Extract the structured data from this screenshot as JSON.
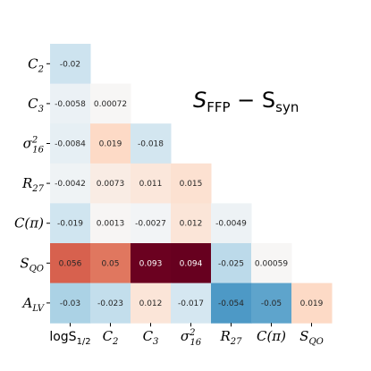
{
  "chart_data": {
    "type": "heatmap",
    "title_main": "S",
    "title_sub_a": "FFP",
    "title_mid": " − S",
    "title_sub_b": "syn",
    "row_labels": [
      {
        "main": "C",
        "sub": "2",
        "sup": ""
      },
      {
        "main": "C",
        "sub": "3",
        "sup": ""
      },
      {
        "main": "σ",
        "sub": "16",
        "sup": "2"
      },
      {
        "main": "R",
        "sub": "27",
        "sup": ""
      },
      {
        "main": "C(π)",
        "sub": "",
        "sup": ""
      },
      {
        "main": "S",
        "sub": "QO",
        "sup": ""
      },
      {
        "main": "A",
        "sub": "LV",
        "sup": ""
      }
    ],
    "col_labels": [
      {
        "main": "logS",
        "sub": "1/2",
        "sup": ""
      },
      {
        "main": "C",
        "sub": "2",
        "sup": ""
      },
      {
        "main": "C",
        "sub": "3",
        "sup": ""
      },
      {
        "main": "σ",
        "sub": "16",
        "sup": "2"
      },
      {
        "main": "R",
        "sub": "27",
        "sup": ""
      },
      {
        "main": "C(π)",
        "sub": "",
        "sup": ""
      },
      {
        "main": "S",
        "sub": "QO",
        "sup": ""
      }
    ],
    "values": [
      [
        -0.02
      ],
      [
        -0.0058,
        0.00072
      ],
      [
        -0.0084,
        0.019,
        -0.018
      ],
      [
        -0.0042,
        0.0073,
        0.011,
        0.015
      ],
      [
        -0.019,
        0.0013,
        -0.0027,
        0.012,
        -0.0049
      ],
      [
        0.056,
        0.05,
        0.093,
        0.094,
        -0.025,
        0.00059
      ],
      [
        -0.03,
        -0.023,
        0.012,
        -0.017,
        -0.054,
        -0.05,
        0.019
      ]
    ],
    "value_labels": [
      [
        "-0.02"
      ],
      [
        "-0.0058",
        "0.00072"
      ],
      [
        "-0.0084",
        "0.019",
        "-0.018"
      ],
      [
        "-0.0042",
        "0.0073",
        "0.011",
        "0.015"
      ],
      [
        "-0.019",
        "0.0013",
        "-0.0027",
        "0.012",
        "-0.0049"
      ],
      [
        "0.056",
        "0.05",
        "0.093",
        "0.094",
        "-0.025",
        "0.00059"
      ],
      [
        "-0.03",
        "-0.023",
        "0.012",
        "-0.017",
        "-0.054",
        "-0.05",
        "0.019"
      ]
    ],
    "colormap": "RdBu_r",
    "vrange": [
      -0.094,
      0.094
    ],
    "mask": "upper-triangle"
  }
}
